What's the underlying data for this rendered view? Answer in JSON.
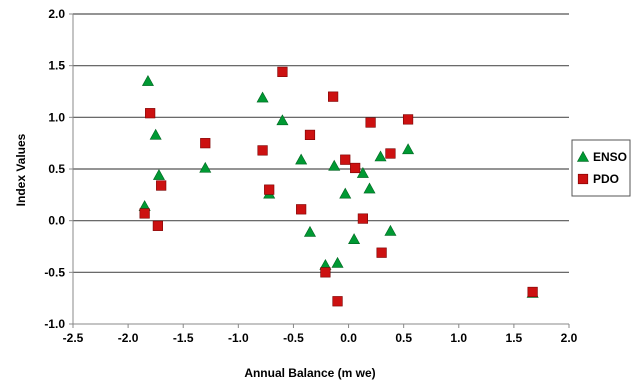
{
  "chart_data": {
    "type": "scatter",
    "title": "",
    "xlabel": "Annual Balance (m we)",
    "ylabel": "Index Values",
    "xlim": [
      -2.5,
      2.0
    ],
    "ylim": [
      -1.0,
      2.0
    ],
    "x_ticks": [
      "-2.5",
      "-2.0",
      "-1.5",
      "-1.0",
      "-0.5",
      "0.0",
      "0.5",
      "1.0",
      "1.5",
      "2.0"
    ],
    "y_ticks": [
      "-1.0",
      "-0.5",
      "0.0",
      "0.5",
      "1.0",
      "1.5",
      "2.0"
    ],
    "x_tick_values": [
      -2.5,
      -2.0,
      -1.5,
      -1.0,
      -0.5,
      0.0,
      0.5,
      1.0,
      1.5,
      2.0
    ],
    "y_tick_values": [
      -1.0,
      -0.5,
      0.0,
      0.5,
      1.0,
      1.5,
      2.0
    ],
    "grid": "horizontal",
    "legend_position": "right",
    "series": [
      {
        "name": "ENSO",
        "marker": "triangle",
        "color": "#009933",
        "points": [
          [
            -1.82,
            1.35
          ],
          [
            -1.75,
            0.83
          ],
          [
            -1.72,
            0.44
          ],
          [
            -1.85,
            0.14
          ],
          [
            -1.3,
            0.51
          ],
          [
            -0.78,
            1.19
          ],
          [
            -0.72,
            0.26
          ],
          [
            -0.6,
            0.97
          ],
          [
            -0.43,
            0.59
          ],
          [
            -0.35,
            -0.11
          ],
          [
            -0.21,
            -0.43
          ],
          [
            -0.13,
            0.53
          ],
          [
            -0.1,
            -0.41
          ],
          [
            -0.03,
            0.26
          ],
          [
            0.05,
            -0.18
          ],
          [
            0.13,
            0.46
          ],
          [
            0.19,
            0.31
          ],
          [
            0.29,
            0.62
          ],
          [
            0.38,
            -0.1
          ],
          [
            0.54,
            0.69
          ],
          [
            1.67,
            -0.7
          ]
        ]
      },
      {
        "name": "PDO",
        "marker": "square",
        "color": "#cc1111",
        "points": [
          [
            -1.8,
            1.04
          ],
          [
            -1.73,
            -0.05
          ],
          [
            -1.7,
            0.34
          ],
          [
            -1.85,
            0.07
          ],
          [
            -1.3,
            0.75
          ],
          [
            -0.78,
            0.68
          ],
          [
            -0.72,
            0.3
          ],
          [
            -0.6,
            1.44
          ],
          [
            -0.43,
            0.11
          ],
          [
            -0.35,
            0.83
          ],
          [
            -0.21,
            -0.5
          ],
          [
            -0.14,
            1.2
          ],
          [
            -0.1,
            -0.78
          ],
          [
            -0.03,
            0.59
          ],
          [
            0.06,
            0.51
          ],
          [
            0.13,
            0.02
          ],
          [
            0.2,
            0.95
          ],
          [
            0.3,
            -0.31
          ],
          [
            0.38,
            0.65
          ],
          [
            0.54,
            0.98
          ],
          [
            1.67,
            -0.69
          ]
        ]
      }
    ]
  }
}
